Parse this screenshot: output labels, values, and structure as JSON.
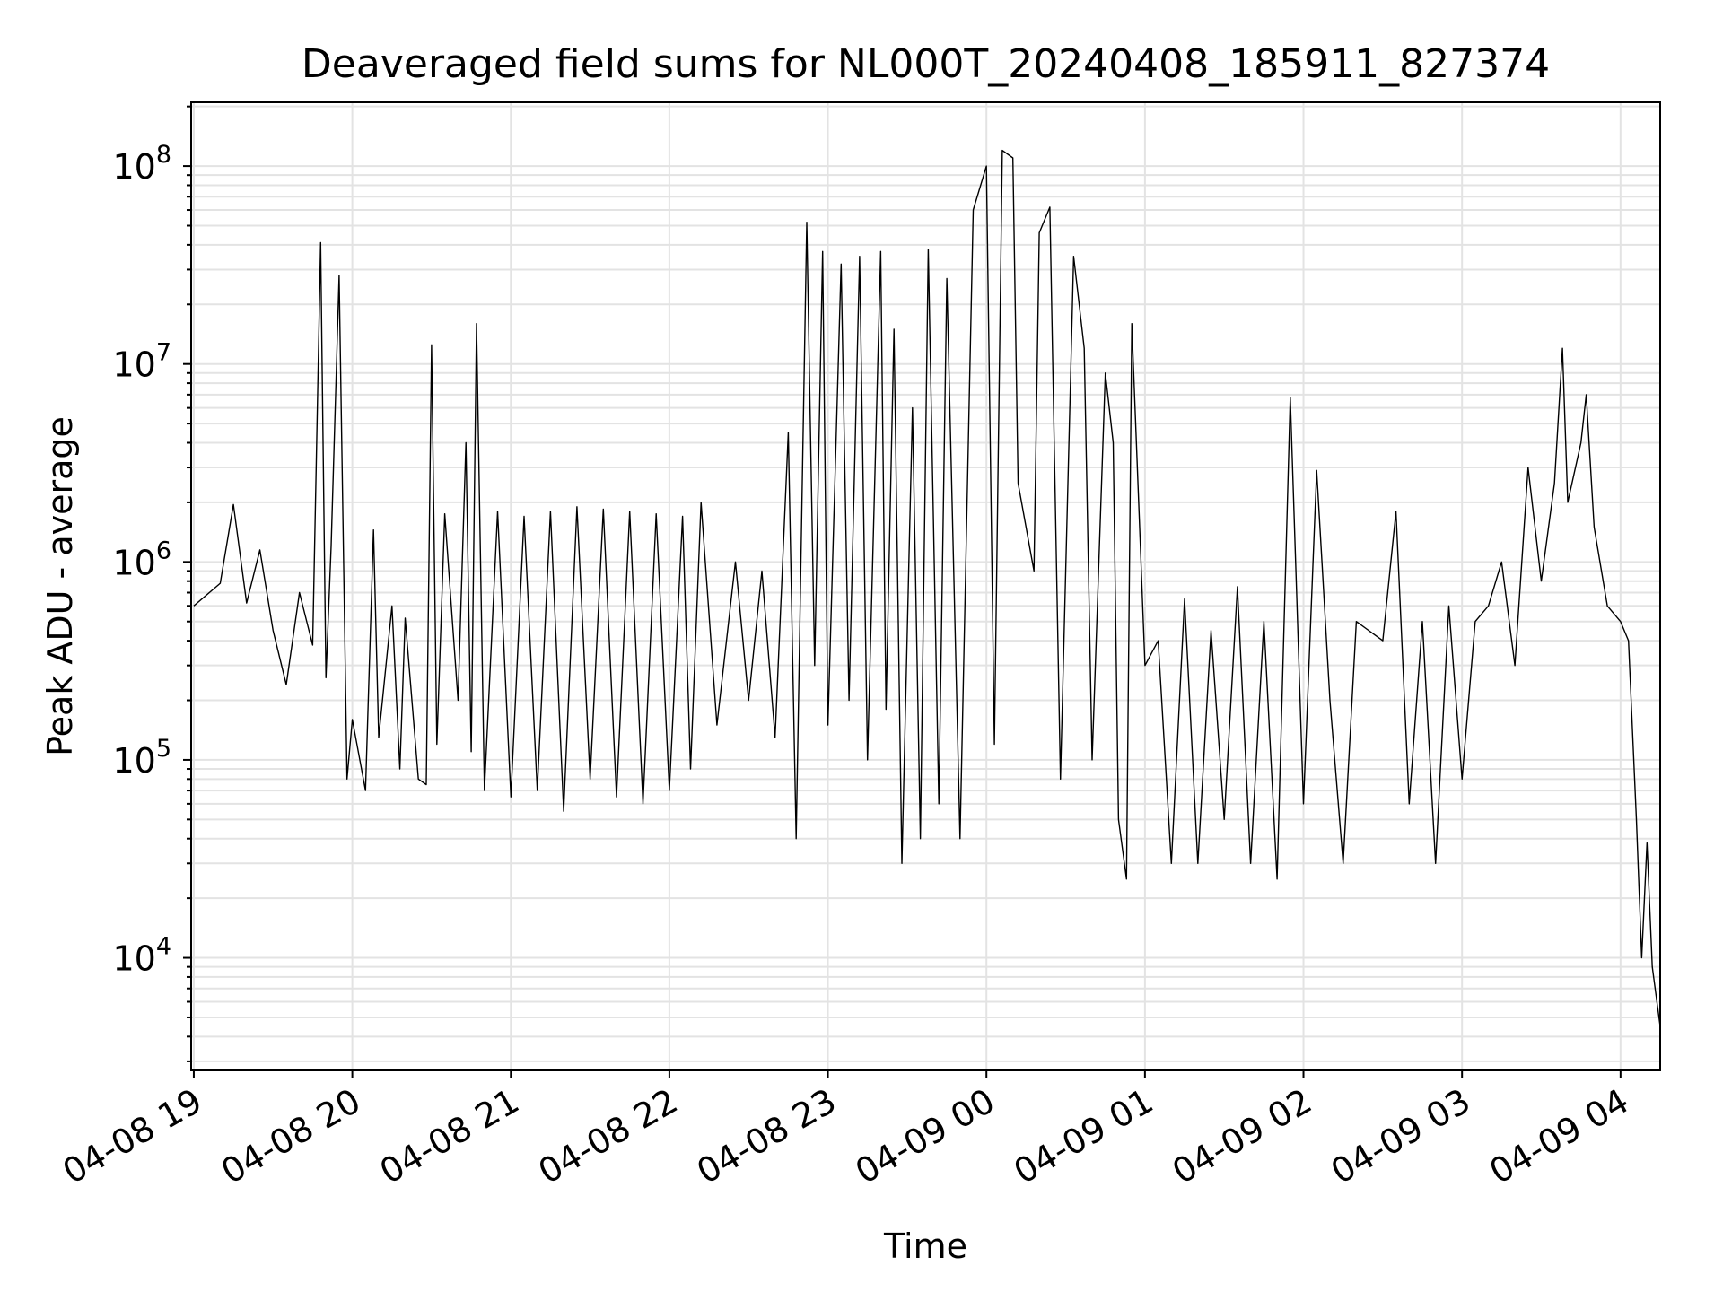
{
  "chart_data": {
    "type": "line",
    "title": "Deaveraged field sums for NL000T_20240408_185911_827374",
    "xlabel": "Time",
    "ylabel": "Peak ADU - average",
    "yscale": "log",
    "ylim": [
      2700,
      210000000
    ],
    "xlim": [
      "2024-04-08 18:59",
      "2024-04-09 04:15"
    ],
    "grid": "on (major and minor)",
    "x_ticks": [
      "04-08 19",
      "04-08 20",
      "04-08 21",
      "04-08 22",
      "04-08 23",
      "04-09 00",
      "04-09 01",
      "04-09 02",
      "04-09 03",
      "04-09 04"
    ],
    "y_ticks": [
      10000,
      100000,
      1000000,
      10000000,
      100000000
    ],
    "series": [
      {
        "color": "#000000",
        "points": [
          [
            "2024-04-08 19:00",
            600000
          ],
          [
            "2024-04-08 19:10",
            780000
          ],
          [
            "2024-04-08 19:15",
            1950000
          ],
          [
            "2024-04-08 19:20",
            620000
          ],
          [
            "2024-04-08 19:25",
            1150000
          ],
          [
            "2024-04-08 19:30",
            450000
          ],
          [
            "2024-04-08 19:35",
            240000
          ],
          [
            "2024-04-08 19:40",
            700000
          ],
          [
            "2024-04-08 19:45",
            380000
          ],
          [
            "2024-04-08 19:48",
            41000000
          ],
          [
            "2024-04-08 19:50",
            260000
          ],
          [
            "2024-04-08 19:52",
            1200000
          ],
          [
            "2024-04-08 19:55",
            28000000
          ],
          [
            "2024-04-08 19:58",
            80000
          ],
          [
            "2024-04-08 20:00",
            160000
          ],
          [
            "2024-04-08 20:05",
            70000
          ],
          [
            "2024-04-08 20:08",
            1450000
          ],
          [
            "2024-04-08 20:10",
            130000
          ],
          [
            "2024-04-08 20:15",
            600000
          ],
          [
            "2024-04-08 20:18",
            90000
          ],
          [
            "2024-04-08 20:20",
            520000
          ],
          [
            "2024-04-08 20:25",
            80000
          ],
          [
            "2024-04-08 20:28",
            75000
          ],
          [
            "2024-04-08 20:30",
            12500000
          ],
          [
            "2024-04-08 20:32",
            120000
          ],
          [
            "2024-04-08 20:35",
            1750000
          ],
          [
            "2024-04-08 20:40",
            200000
          ],
          [
            "2024-04-08 20:43",
            4000000
          ],
          [
            "2024-04-08 20:45",
            110000
          ],
          [
            "2024-04-08 20:47",
            16000000
          ],
          [
            "2024-04-08 20:50",
            70000
          ],
          [
            "2024-04-08 20:55",
            1800000
          ],
          [
            "2024-04-08 21:00",
            65000
          ],
          [
            "2024-04-08 21:05",
            1700000
          ],
          [
            "2024-04-08 21:10",
            70000
          ],
          [
            "2024-04-08 21:15",
            1800000
          ],
          [
            "2024-04-08 21:20",
            55000
          ],
          [
            "2024-04-08 21:25",
            1900000
          ],
          [
            "2024-04-08 21:30",
            80000
          ],
          [
            "2024-04-08 21:35",
            1850000
          ],
          [
            "2024-04-08 21:40",
            65000
          ],
          [
            "2024-04-08 21:45",
            1800000
          ],
          [
            "2024-04-08 21:50",
            60000
          ],
          [
            "2024-04-08 21:55",
            1750000
          ],
          [
            "2024-04-08 22:00",
            70000
          ],
          [
            "2024-04-08 22:05",
            1700000
          ],
          [
            "2024-04-08 22:08",
            90000
          ],
          [
            "2024-04-08 22:12",
            2000000
          ],
          [
            "2024-04-08 22:18",
            150000
          ],
          [
            "2024-04-08 22:25",
            1000000
          ],
          [
            "2024-04-08 22:30",
            200000
          ],
          [
            "2024-04-08 22:35",
            900000
          ],
          [
            "2024-04-08 22:40",
            130000
          ],
          [
            "2024-04-08 22:45",
            4500000
          ],
          [
            "2024-04-08 22:48",
            40000
          ],
          [
            "2024-04-08 22:52",
            52000000
          ],
          [
            "2024-04-08 22:55",
            300000
          ],
          [
            "2024-04-08 22:58",
            37000000
          ],
          [
            "2024-04-08 23:00",
            150000
          ],
          [
            "2024-04-08 23:05",
            32000000
          ],
          [
            "2024-04-08 23:08",
            200000
          ],
          [
            "2024-04-08 23:12",
            35000000
          ],
          [
            "2024-04-08 23:15",
            100000
          ],
          [
            "2024-04-08 23:20",
            37000000
          ],
          [
            "2024-04-08 23:22",
            180000
          ],
          [
            "2024-04-08 23:25",
            15000000
          ],
          [
            "2024-04-08 23:28",
            30000
          ],
          [
            "2024-04-08 23:32",
            6000000
          ],
          [
            "2024-04-08 23:35",
            40000
          ],
          [
            "2024-04-08 23:38",
            38000000
          ],
          [
            "2024-04-08 23:42",
            60000
          ],
          [
            "2024-04-08 23:45",
            27000000
          ],
          [
            "2024-04-08 23:50",
            40000
          ],
          [
            "2024-04-08 23:55",
            60000000
          ],
          [
            "2024-04-09 00:00",
            100000000
          ],
          [
            "2024-04-09 00:03",
            120000
          ],
          [
            "2024-04-09 00:06",
            120000000
          ],
          [
            "2024-04-09 00:10",
            110000000
          ],
          [
            "2024-04-09 00:12",
            2500000
          ],
          [
            "2024-04-09 00:18",
            900000
          ],
          [
            "2024-04-09 00:20",
            46000000
          ],
          [
            "2024-04-09 00:24",
            62000000
          ],
          [
            "2024-04-09 00:28",
            80000
          ],
          [
            "2024-04-09 00:33",
            35000000
          ],
          [
            "2024-04-09 00:37",
            12000000
          ],
          [
            "2024-04-09 00:40",
            100000
          ],
          [
            "2024-04-09 00:45",
            9000000
          ],
          [
            "2024-04-09 00:48",
            4000000
          ],
          [
            "2024-04-09 00:50",
            50000
          ],
          [
            "2024-04-09 00:53",
            25000
          ],
          [
            "2024-04-09 00:55",
            16000000
          ],
          [
            "2024-04-09 01:00",
            300000
          ],
          [
            "2024-04-09 01:05",
            400000
          ],
          [
            "2024-04-09 01:10",
            30000
          ],
          [
            "2024-04-09 01:15",
            650000
          ],
          [
            "2024-04-09 01:20",
            30000
          ],
          [
            "2024-04-09 01:25",
            450000
          ],
          [
            "2024-04-09 01:30",
            50000
          ],
          [
            "2024-04-09 01:35",
            750000
          ],
          [
            "2024-04-09 01:40",
            30000
          ],
          [
            "2024-04-09 01:45",
            500000
          ],
          [
            "2024-04-09 01:50",
            25000
          ],
          [
            "2024-04-09 01:55",
            6800000
          ],
          [
            "2024-04-09 02:00",
            60000
          ],
          [
            "2024-04-09 02:05",
            2900000
          ],
          [
            "2024-04-09 02:10",
            200000
          ],
          [
            "2024-04-09 02:15",
            30000
          ],
          [
            "2024-04-09 02:20",
            500000
          ],
          [
            "2024-04-09 02:30",
            400000
          ],
          [
            "2024-04-09 02:35",
            1800000
          ],
          [
            "2024-04-09 02:40",
            60000
          ],
          [
            "2024-04-09 02:45",
            500000
          ],
          [
            "2024-04-09 02:50",
            30000
          ],
          [
            "2024-04-09 02:55",
            600000
          ],
          [
            "2024-04-09 03:00",
            80000
          ],
          [
            "2024-04-09 03:05",
            500000
          ],
          [
            "2024-04-09 03:10",
            600000
          ],
          [
            "2024-04-09 03:15",
            1000000
          ],
          [
            "2024-04-09 03:20",
            300000
          ],
          [
            "2024-04-09 03:25",
            3000000
          ],
          [
            "2024-04-09 03:30",
            800000
          ],
          [
            "2024-04-09 03:35",
            2500000
          ],
          [
            "2024-04-09 03:38",
            12000000
          ],
          [
            "2024-04-09 03:40",
            2000000
          ],
          [
            "2024-04-09 03:45",
            4000000
          ],
          [
            "2024-04-09 03:47",
            7000000
          ],
          [
            "2024-04-09 03:50",
            1500000
          ],
          [
            "2024-04-09 03:55",
            600000
          ],
          [
            "2024-04-09 04:00",
            500000
          ],
          [
            "2024-04-09 04:03",
            400000
          ],
          [
            "2024-04-09 04:06",
            50000
          ],
          [
            "2024-04-09 04:08",
            10000
          ],
          [
            "2024-04-09 04:10",
            38000
          ],
          [
            "2024-04-09 04:12",
            9000
          ],
          [
            "2024-04-09 04:15",
            4500
          ]
        ]
      }
    ]
  }
}
